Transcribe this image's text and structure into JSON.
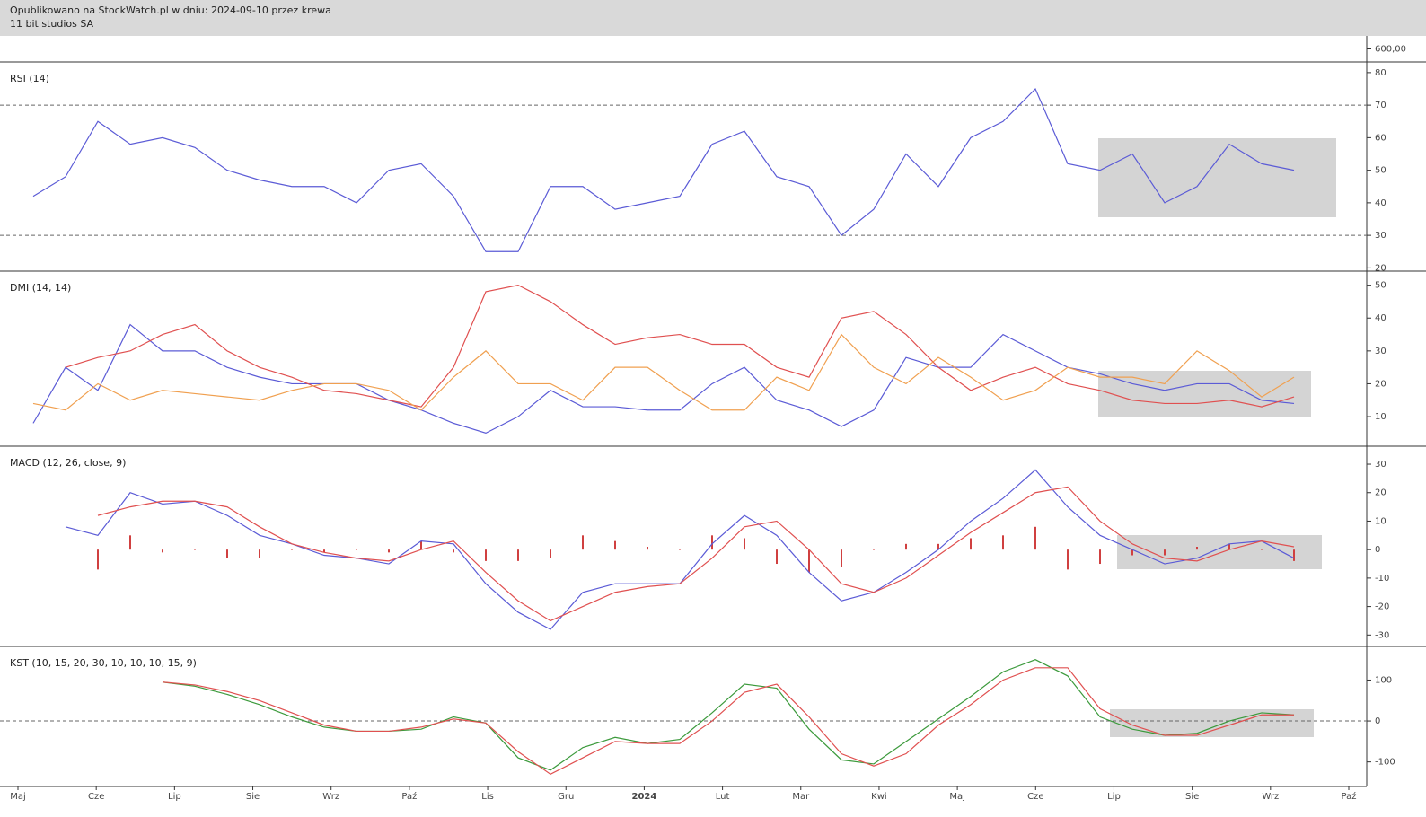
{
  "header": {
    "line1": "Opublikowano na StockWatch.pl w dniu: 2024-09-10 przez krewa",
    "line2": "11 bit studios SA"
  },
  "x_axis": {
    "categories": [
      "Maj",
      "Cze",
      "Lip",
      "Sie",
      "Wrz",
      "Paź",
      "Lis",
      "Gru",
      "2024",
      "Lut",
      "Mar",
      "Kwi",
      "Maj",
      "Cze",
      "Lip",
      "Sie",
      "Wrz",
      "Paź"
    ]
  },
  "chart_data": [
    {
      "type": "price",
      "ylim": [
        560,
        640
      ],
      "yticks": [
        {
          "value": 600,
          "label": "600,00"
        }
      ],
      "series": []
    },
    {
      "type": "line",
      "title": "RSI (14)",
      "ylim": [
        19,
        83
      ],
      "yticks": [
        20,
        30,
        40,
        50,
        60,
        70,
        80
      ],
      "hlines": [
        70,
        30
      ],
      "series": [
        {
          "color": "#5b5bd6",
          "values": [
            42,
            48,
            65,
            58,
            60,
            57,
            50,
            47,
            45,
            45,
            40,
            50,
            52,
            42,
            25,
            25,
            45,
            45,
            38,
            40,
            42,
            58,
            62,
            48,
            45,
            30,
            38,
            55,
            45,
            60,
            65,
            75,
            52,
            50,
            55,
            40,
            45,
            58,
            52,
            50
          ]
        }
      ]
    },
    {
      "type": "line",
      "title": "DMI (14, 14)",
      "ylim": [
        1,
        54
      ],
      "yticks": [
        10,
        20,
        30,
        40,
        50
      ],
      "series": [
        {
          "color": "#5b5bd6",
          "values": [
            8,
            25,
            18,
            38,
            30,
            30,
            25,
            22,
            20,
            20,
            20,
            15,
            12,
            8,
            5,
            10,
            18,
            13,
            13,
            12,
            12,
            20,
            25,
            15,
            12,
            7,
            12,
            28,
            25,
            25,
            35,
            30,
            25,
            23,
            20,
            18,
            20,
            20,
            15,
            14
          ]
        },
        {
          "color": "#e05050",
          "values": [
            null,
            25,
            28,
            30,
            35,
            38,
            30,
            25,
            22,
            18,
            17,
            15,
            13,
            25,
            48,
            50,
            45,
            38,
            32,
            34,
            35,
            32,
            32,
            25,
            22,
            40,
            42,
            35,
            25,
            18,
            22,
            25,
            20,
            18,
            15,
            14,
            14,
            15,
            13,
            16
          ]
        },
        {
          "color": "#f0a050",
          "values": [
            14,
            12,
            20,
            15,
            18,
            17,
            16,
            15,
            18,
            20,
            20,
            18,
            12,
            22,
            30,
            20,
            20,
            15,
            25,
            25,
            18,
            12,
            12,
            22,
            18,
            35,
            25,
            20,
            28,
            22,
            15,
            18,
            25,
            22,
            22,
            20,
            30,
            24,
            16,
            22
          ]
        }
      ]
    },
    {
      "type": "line",
      "title": "MACD (12, 26, close, 9)",
      "ylim": [
        -34,
        36
      ],
      "yticks": [
        -30,
        -20,
        -10,
        0,
        10,
        20,
        30
      ],
      "series": [
        {
          "type": "bar",
          "color": "#d04040",
          "values": [
            null,
            null,
            -7,
            5,
            -1,
            0,
            -3,
            -3,
            0,
            -1,
            0,
            -1,
            3,
            -1,
            -4,
            -4,
            -3,
            5,
            3,
            1,
            0,
            5,
            4,
            -5,
            -8,
            -6,
            0,
            2,
            2,
            4,
            5,
            8,
            -7,
            -5,
            -2,
            -2,
            1,
            2,
            0,
            -4
          ]
        },
        {
          "color": "#5b5bd6",
          "values": [
            null,
            8,
            5,
            20,
            16,
            17,
            12,
            5,
            2,
            -2,
            -3,
            -5,
            3,
            2,
            -12,
            -22,
            -28,
            -15,
            -12,
            -12,
            -12,
            2,
            12,
            5,
            -8,
            -18,
            -15,
            -8,
            0,
            10,
            18,
            28,
            15,
            5,
            0,
            -5,
            -3,
            2,
            3,
            -3
          ]
        },
        {
          "color": "#e05050",
          "values": [
            null,
            null,
            12,
            15,
            17,
            17,
            15,
            8,
            2,
            -1,
            -3,
            -4,
            0,
            3,
            -8,
            -18,
            -25,
            -20,
            -15,
            -13,
            -12,
            -3,
            8,
            10,
            0,
            -12,
            -15,
            -10,
            -2,
            6,
            13,
            20,
            22,
            10,
            2,
            -3,
            -4,
            0,
            3,
            1
          ]
        }
      ]
    },
    {
      "type": "line",
      "title": "KST (10, 15, 20, 30, 10, 10, 10, 15, 9)",
      "ylim": [
        -160,
        180
      ],
      "yticks": [
        -100,
        0,
        100
      ],
      "hlines": [
        0
      ],
      "series": [
        {
          "color": "#3c9a3c",
          "values": [
            null,
            null,
            null,
            null,
            95,
            85,
            65,
            40,
            10,
            -15,
            -25,
            -25,
            -20,
            10,
            -5,
            -90,
            -120,
            -65,
            -40,
            -55,
            -45,
            20,
            90,
            80,
            -20,
            -95,
            -105,
            -50,
            5,
            60,
            120,
            150,
            110,
            10,
            -20,
            -35,
            -30,
            0,
            20,
            15
          ]
        },
        {
          "color": "#e05050",
          "values": [
            null,
            null,
            null,
            null,
            95,
            88,
            72,
            50,
            20,
            -10,
            -25,
            -25,
            -15,
            5,
            -5,
            -75,
            -130,
            -90,
            -50,
            -55,
            -55,
            0,
            70,
            90,
            10,
            -80,
            -110,
            -80,
            -10,
            40,
            100,
            130,
            130,
            30,
            -10,
            -35,
            -35,
            -10,
            15,
            15
          ]
        }
      ]
    }
  ]
}
